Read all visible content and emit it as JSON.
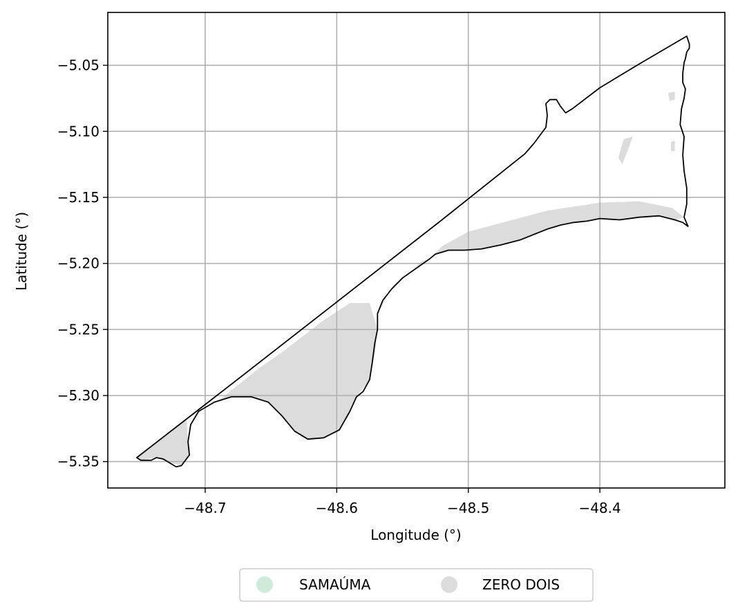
{
  "chart_data": {
    "type": "map",
    "xlabel": "Longitude (°)",
    "ylabel": "Latitude (°)",
    "xlim": [
      -48.774,
      -48.305
    ],
    "ylim": [
      -5.37,
      -5.01
    ],
    "xticks": [
      -48.7,
      -48.6,
      -48.5,
      -48.4
    ],
    "xtick_labels": [
      "−48.7",
      "−48.6",
      "−48.5",
      "−48.4"
    ],
    "yticks": [
      -5.05,
      -5.1,
      -5.15,
      -5.2,
      -5.25,
      -5.3,
      -5.35
    ],
    "ytick_labels": [
      "−5.05",
      "−5.10",
      "−5.15",
      "−5.20",
      "−5.25",
      "−5.30",
      "−5.35"
    ],
    "grid": true,
    "legend_position": "bottom-center",
    "legend": [
      {
        "label": "SAMAÚMA",
        "color": "#cdeadb"
      },
      {
        "label": "ZERO DOIS",
        "color": "#dcdcdc"
      }
    ],
    "boundary": [
      [
        -48.752,
        -5.347
      ],
      [
        -48.673,
        -5.286
      ],
      [
        -48.52,
        -5.167
      ],
      [
        -48.457,
        -5.117
      ],
      [
        -48.45,
        -5.109
      ],
      [
        -48.441,
        -5.097
      ],
      [
        -48.44,
        -5.088
      ],
      [
        -48.441,
        -5.079
      ],
      [
        -48.438,
        -5.076
      ],
      [
        -48.433,
        -5.076
      ],
      [
        -48.43,
        -5.081
      ],
      [
        -48.426,
        -5.086
      ],
      [
        -48.421,
        -5.083
      ],
      [
        -48.4,
        -5.067
      ],
      [
        -48.37,
        -5.049
      ],
      [
        -48.334,
        -5.028
      ],
      [
        -48.332,
        -5.034
      ],
      [
        -48.332,
        -5.037
      ],
      [
        -48.334,
        -5.04
      ],
      [
        -48.335,
        -5.045
      ],
      [
        -48.336,
        -5.048
      ],
      [
        -48.337,
        -5.056
      ],
      [
        -48.337,
        -5.063
      ],
      [
        -48.335,
        -5.068
      ],
      [
        -48.336,
        -5.075
      ],
      [
        -48.338,
        -5.083
      ],
      [
        -48.339,
        -5.095
      ],
      [
        -48.336,
        -5.104
      ],
      [
        -48.337,
        -5.118
      ],
      [
        -48.336,
        -5.13
      ],
      [
        -48.334,
        -5.143
      ],
      [
        -48.334,
        -5.155
      ],
      [
        -48.336,
        -5.165
      ],
      [
        -48.333,
        -5.172
      ],
      [
        -48.337,
        -5.169
      ],
      [
        -48.343,
        -5.167
      ],
      [
        -48.355,
        -5.164
      ],
      [
        -48.37,
        -5.165
      ],
      [
        -48.385,
        -5.167
      ],
      [
        -48.4,
        -5.166
      ],
      [
        -48.41,
        -5.168
      ],
      [
        -48.42,
        -5.169
      ],
      [
        -48.43,
        -5.171
      ],
      [
        -48.44,
        -5.174
      ],
      [
        -48.45,
        -5.178
      ],
      [
        -48.46,
        -5.182
      ],
      [
        -48.475,
        -5.186
      ],
      [
        -48.49,
        -5.189
      ],
      [
        -48.503,
        -5.19
      ],
      [
        -48.515,
        -5.19
      ],
      [
        -48.525,
        -5.193
      ],
      [
        -48.53,
        -5.197
      ],
      [
        -48.54,
        -5.204
      ],
      [
        -48.55,
        -5.211
      ],
      [
        -48.558,
        -5.219
      ],
      [
        -48.565,
        -5.228
      ],
      [
        -48.569,
        -5.238
      ],
      [
        -48.569,
        -5.25
      ],
      [
        -48.571,
        -5.26
      ],
      [
        -48.573,
        -5.275
      ],
      [
        -48.575,
        -5.288
      ],
      [
        -48.58,
        -5.297
      ],
      [
        -48.585,
        -5.301
      ],
      [
        -48.59,
        -5.312
      ],
      [
        -48.598,
        -5.326
      ],
      [
        -48.61,
        -5.332
      ],
      [
        -48.622,
        -5.333
      ],
      [
        -48.632,
        -5.327
      ],
      [
        -48.642,
        -5.315
      ],
      [
        -48.652,
        -5.305
      ],
      [
        -48.665,
        -5.301
      ],
      [
        -48.68,
        -5.301
      ],
      [
        -48.693,
        -5.305
      ],
      [
        -48.705,
        -5.312
      ],
      [
        -48.711,
        -5.322
      ],
      [
        -48.713,
        -5.335
      ],
      [
        -48.712,
        -5.345
      ],
      [
        -48.718,
        -5.353
      ],
      [
        -48.722,
        -5.354
      ],
      [
        -48.727,
        -5.351
      ],
      [
        -48.732,
        -5.348
      ],
      [
        -48.737,
        -5.347
      ],
      [
        -48.741,
        -5.349
      ],
      [
        -48.749,
        -5.349
      ],
      [
        -48.752,
        -5.347
      ]
    ],
    "regions": [
      {
        "class": "ZERO DOIS",
        "coords": [
          [
            -48.752,
            -5.347
          ],
          [
            -48.73,
            -5.33
          ],
          [
            -48.714,
            -5.318
          ],
          [
            -48.713,
            -5.335
          ],
          [
            -48.712,
            -5.345
          ],
          [
            -48.718,
            -5.353
          ],
          [
            -48.727,
            -5.351
          ],
          [
            -48.737,
            -5.347
          ],
          [
            -48.749,
            -5.349
          ]
        ]
      },
      {
        "class": "ZERO DOIS",
        "coords": [
          [
            -48.69,
            -5.304
          ],
          [
            -48.66,
            -5.28
          ],
          [
            -48.64,
            -5.266
          ],
          [
            -48.61,
            -5.243
          ],
          [
            -48.59,
            -5.23
          ],
          [
            -48.575,
            -5.23
          ],
          [
            -48.569,
            -5.25
          ],
          [
            -48.571,
            -5.268
          ],
          [
            -48.575,
            -5.288
          ],
          [
            -48.585,
            -5.301
          ],
          [
            -48.598,
            -5.326
          ],
          [
            -48.61,
            -5.332
          ],
          [
            -48.622,
            -5.333
          ],
          [
            -48.632,
            -5.327
          ],
          [
            -48.642,
            -5.315
          ],
          [
            -48.652,
            -5.305
          ],
          [
            -48.665,
            -5.301
          ],
          [
            -48.68,
            -5.301
          ]
        ]
      },
      {
        "class": "ZERO DOIS",
        "coords": [
          [
            -48.569,
            -5.238
          ],
          [
            -48.56,
            -5.222
          ],
          [
            -48.548,
            -5.21
          ],
          [
            -48.535,
            -5.198
          ],
          [
            -48.53,
            -5.197
          ],
          [
            -48.54,
            -5.204
          ],
          [
            -48.55,
            -5.211
          ],
          [
            -48.558,
            -5.219
          ],
          [
            -48.565,
            -5.228
          ]
        ]
      },
      {
        "class": "ZERO DOIS",
        "coords": [
          [
            -48.53,
            -5.197
          ],
          [
            -48.52,
            -5.187
          ],
          [
            -48.5,
            -5.176
          ],
          [
            -48.47,
            -5.168
          ],
          [
            -48.44,
            -5.16
          ],
          [
            -48.4,
            -5.154
          ],
          [
            -48.37,
            -5.153
          ],
          [
            -48.345,
            -5.158
          ],
          [
            -48.336,
            -5.165
          ],
          [
            -48.343,
            -5.167
          ],
          [
            -48.355,
            -5.164
          ],
          [
            -48.37,
            -5.165
          ],
          [
            -48.385,
            -5.167
          ],
          [
            -48.4,
            -5.166
          ],
          [
            -48.42,
            -5.169
          ],
          [
            -48.44,
            -5.174
          ],
          [
            -48.46,
            -5.182
          ],
          [
            -48.49,
            -5.189
          ],
          [
            -48.515,
            -5.19
          ],
          [
            -48.525,
            -5.193
          ]
        ]
      },
      {
        "class": "ZERO DOIS",
        "coords": [
          [
            -48.382,
            -5.106
          ],
          [
            -48.375,
            -5.104
          ],
          [
            -48.379,
            -5.115
          ],
          [
            -48.383,
            -5.125
          ],
          [
            -48.386,
            -5.12
          ]
        ]
      },
      {
        "class": "ZERO DOIS",
        "coords": [
          [
            -48.348,
            -5.071
          ],
          [
            -48.343,
            -5.07
          ],
          [
            -48.343,
            -5.076
          ],
          [
            -48.347,
            -5.077
          ]
        ]
      },
      {
        "class": "ZERO DOIS",
        "coords": [
          [
            -48.346,
            -5.108
          ],
          [
            -48.343,
            -5.107
          ],
          [
            -48.343,
            -5.115
          ],
          [
            -48.346,
            -5.115
          ]
        ]
      }
    ]
  }
}
